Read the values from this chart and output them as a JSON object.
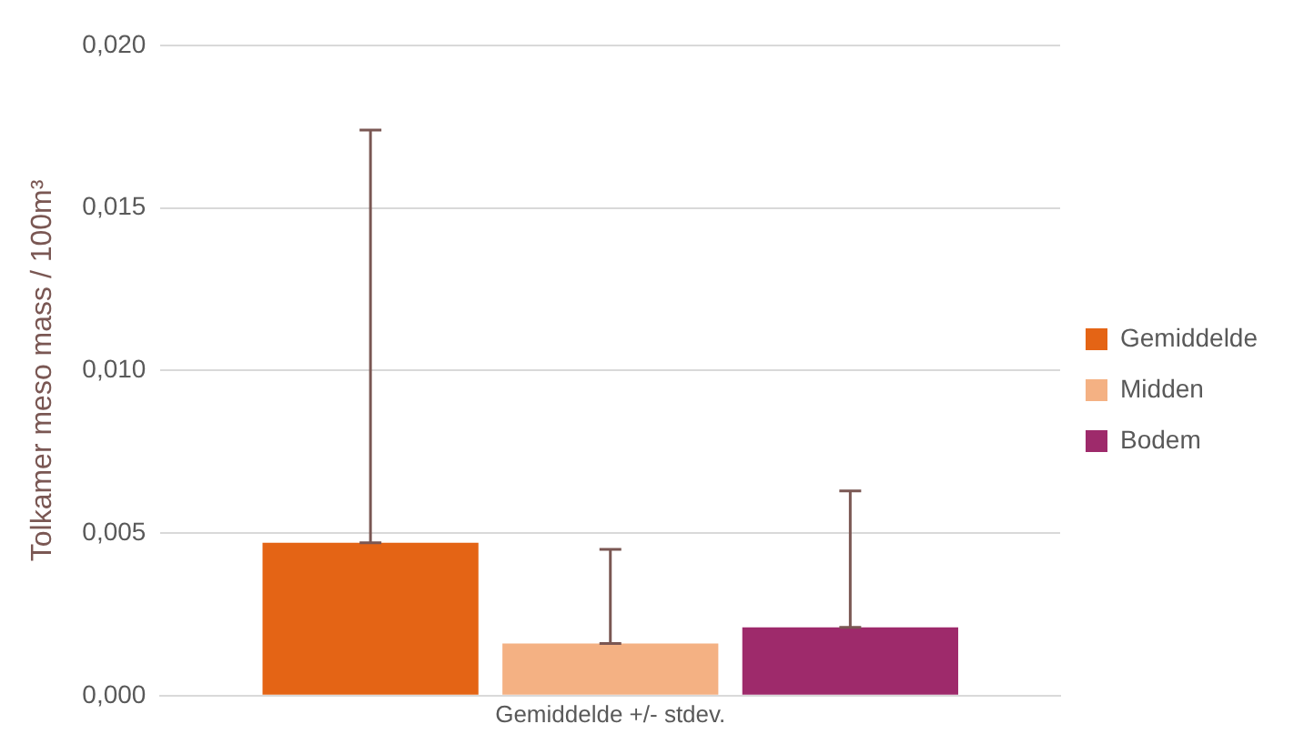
{
  "chart_data": {
    "type": "bar",
    "ylabel": "Tolkamer meso mass / 100m³",
    "xlabel": null,
    "categories": [
      "Gemiddelde +/- stdev."
    ],
    "series": [
      {
        "name": "Gemiddelde",
        "color": "#e46415",
        "values": [
          0.0047
        ],
        "errors": [
          [
            0.0047,
            0.0174
          ]
        ]
      },
      {
        "name": "Midden",
        "color": "#f4b183",
        "values": [
          0.0016
        ],
        "errors": [
          [
            0.0016,
            0.0045
          ]
        ]
      },
      {
        "name": "Bodem",
        "color": "#9e2a6b",
        "values": [
          0.0021
        ],
        "errors": [
          [
            0.0021,
            0.0063
          ]
        ]
      }
    ],
    "ylim": [
      0,
      0.02
    ],
    "yticks": [
      {
        "value": 0,
        "label": "0,000"
      },
      {
        "value": 0.005,
        "label": "0,005"
      },
      {
        "value": 0.01,
        "label": "0,010"
      },
      {
        "value": 0.015,
        "label": "0,015"
      },
      {
        "value": 0.02,
        "label": "0,020"
      }
    ],
    "grid": "y",
    "legend": "right"
  }
}
